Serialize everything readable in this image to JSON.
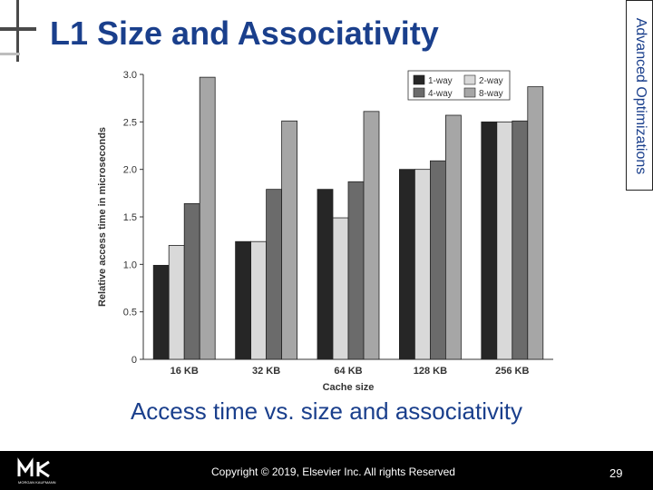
{
  "slide": {
    "title": "L1 Size and Associativity",
    "side_label": "Advanced Optimizations",
    "caption": "Access time vs. size and associativity",
    "copyright": "Copyright © 2019, Elsevier Inc. All rights Reserved",
    "page_number": "29",
    "logo_text": "MORGAN KAUFMANN"
  },
  "chart_data": {
    "type": "bar",
    "categories": [
      "16 KB",
      "32 KB",
      "64 KB",
      "128 KB",
      "256 KB"
    ],
    "series": [
      {
        "name": "1-way",
        "color": "#262626",
        "values": [
          0.99,
          1.24,
          1.79,
          2.0,
          2.5
        ]
      },
      {
        "name": "2-way",
        "color": "#d9d9d9",
        "values": [
          1.2,
          1.24,
          1.49,
          2.0,
          2.5
        ]
      },
      {
        "name": "4-way",
        "color": "#6b6b6b",
        "values": [
          1.64,
          1.79,
          1.87,
          2.09,
          2.51
        ]
      },
      {
        "name": "8-way",
        "color": "#a6a6a6",
        "values": [
          2.97,
          2.51,
          2.61,
          2.57,
          2.87
        ]
      }
    ],
    "xlabel": "Cache size",
    "ylabel": "Relative access time in microseconds",
    "ylim": [
      0,
      3.0
    ],
    "yticks": [
      "0",
      "0.5",
      "1.0",
      "1.5",
      "2.0",
      "2.5",
      "3.0"
    ],
    "legend_position": "top-right",
    "grid": false
  }
}
